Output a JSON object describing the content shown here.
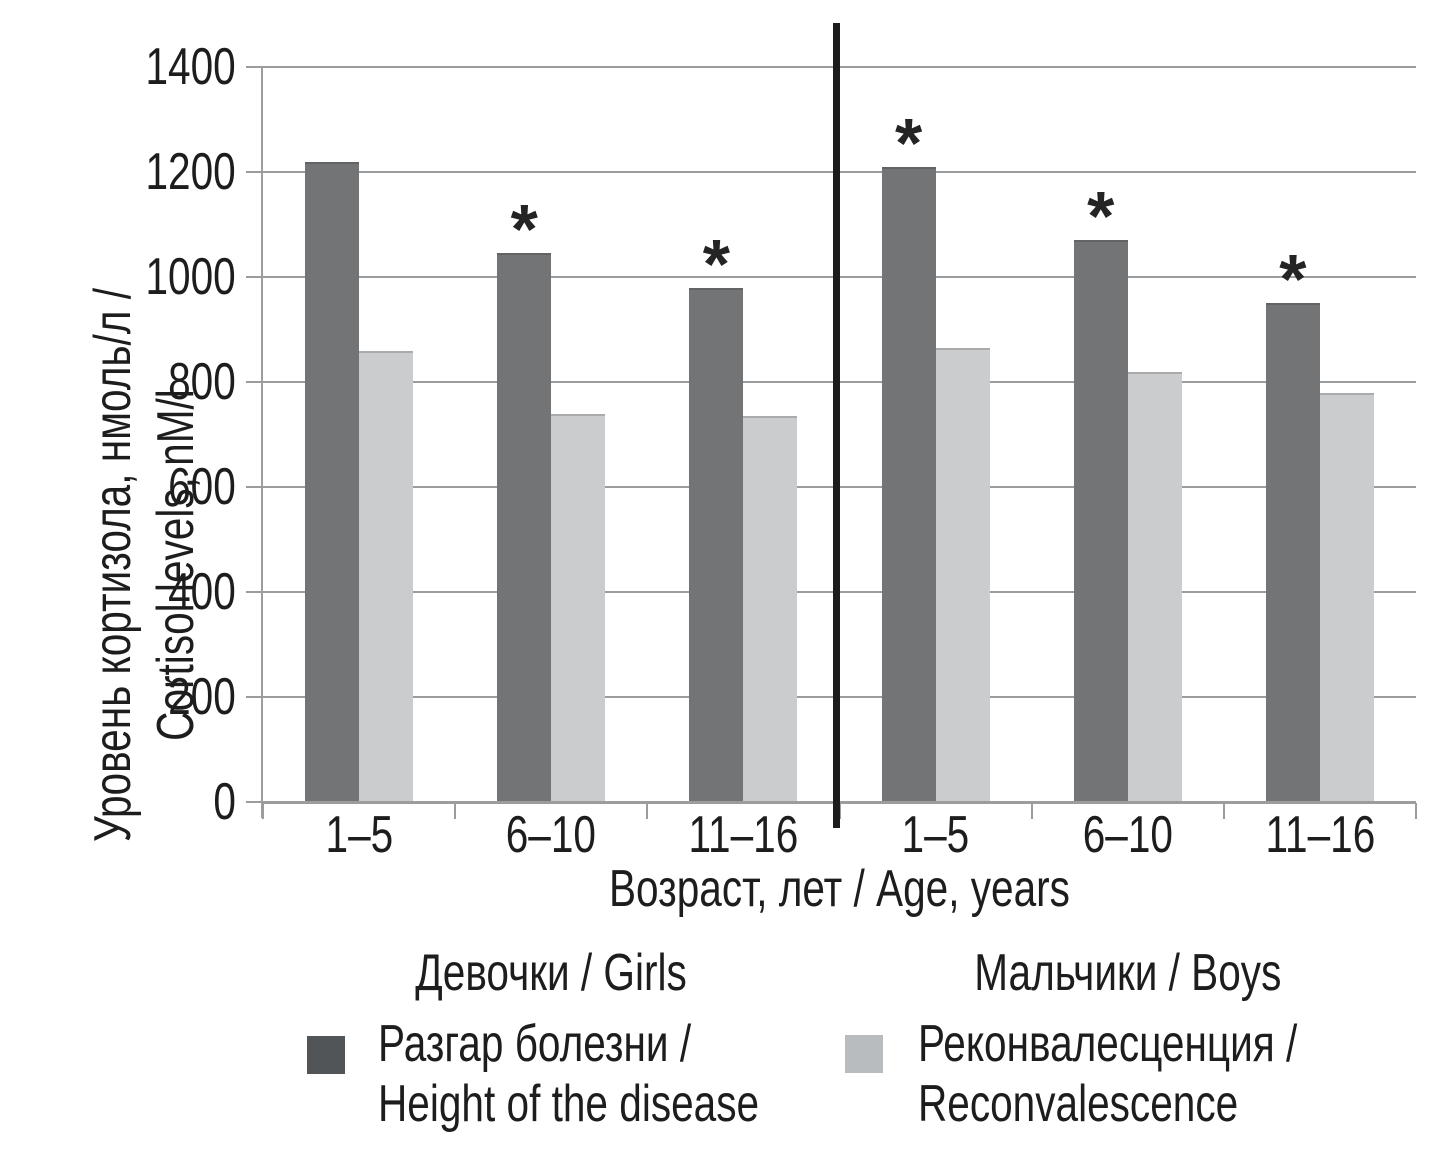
{
  "chart_data": {
    "type": "bar",
    "title": "",
    "xlabel": "Возраст, лет / Age, years",
    "ylabel_line1": "Уровень кортизола, нмоль/л /",
    "ylabel_line2": "Cortisol levels, nM/l",
    "ylim": [
      0,
      1400
    ],
    "yticks": [
      0,
      200,
      400,
      600,
      800,
      1000,
      1200,
      1400
    ],
    "grid": "horizontal",
    "legend_position": "bottom",
    "categories": [
      "1–5",
      "6–10",
      "11–16",
      "1–5",
      "6–10",
      "11–16"
    ],
    "category_sections": [
      {
        "label": "Девочки / Girls",
        "category_indexes": [
          0,
          1,
          2
        ]
      },
      {
        "label": "Мальчики / Boys",
        "category_indexes": [
          3,
          4,
          5
        ]
      }
    ],
    "series": [
      {
        "name": "Разгар болезни / Height of the disease",
        "legend_line1": "Разгар болезни /",
        "legend_line2": "Height of the disease",
        "values": [
          1220,
          1045,
          980,
          1210,
          1070,
          950
        ]
      },
      {
        "name": "Реконвалесценция / Reconvalescence",
        "legend_line1": "Реконвалесценция /",
        "legend_line2": "Reconvalescence",
        "values": [
          860,
          740,
          735,
          865,
          820,
          780
        ]
      }
    ],
    "significance": {
      "marker": "*",
      "series_index": 0,
      "flags": [
        false,
        true,
        true,
        true,
        true,
        true
      ]
    },
    "colors": {
      "series_dark_bar": "#737476",
      "series_dark_bar_edge": "#626365",
      "series_light_bar": "#cacccd",
      "series_light_bar_edge": "#a9abad",
      "legend_dark_swatch": "#515557",
      "legend_light_swatch": "#b9bcbe",
      "gridline": "#9a9c9e",
      "axis": "#9a9c9e",
      "divider": "#1c1c1c",
      "text": "#1d1d1d",
      "marker": "#242424"
    }
  }
}
